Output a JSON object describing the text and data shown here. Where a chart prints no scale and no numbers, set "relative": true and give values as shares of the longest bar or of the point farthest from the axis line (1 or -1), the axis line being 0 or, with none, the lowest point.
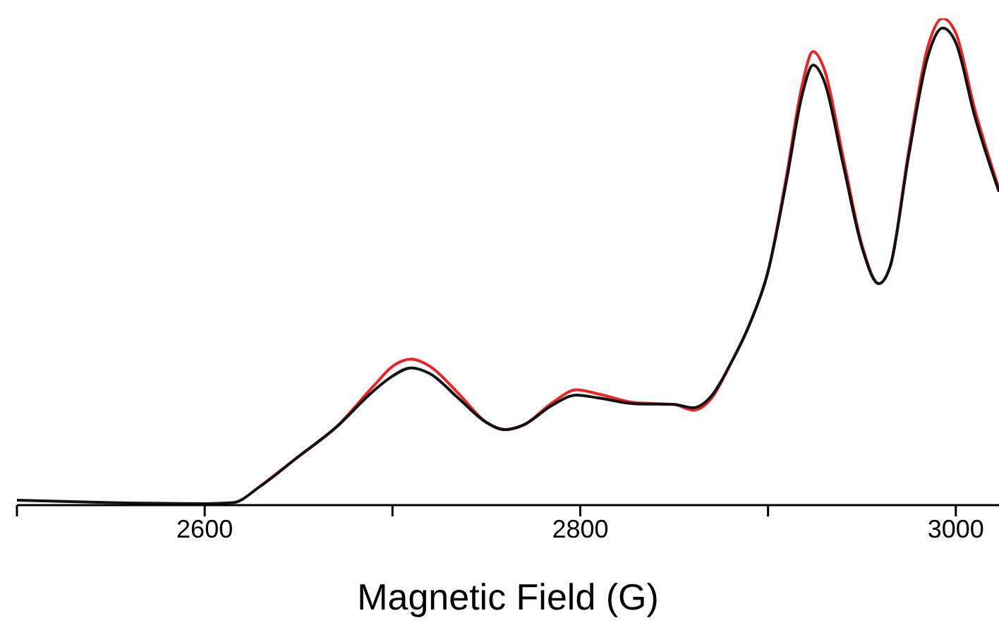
{
  "chart_data": {
    "type": "line",
    "xlabel": "Magnetic Field (G)",
    "relative": true,
    "x": [
      2500,
      2550,
      2600,
      2615,
      2630,
      2650,
      2670,
      2690,
      2700,
      2710,
      2720,
      2735,
      2750,
      2760,
      2770,
      2785,
      2798,
      2810,
      2830,
      2850,
      2860,
      2870,
      2880,
      2890,
      2900,
      2910,
      2918,
      2924,
      2930,
      2940,
      2950,
      2959,
      2965,
      2975,
      2985,
      2993,
      3000,
      3010,
      3023
    ],
    "series": [
      {
        "color": "#ee2222",
        "values": [
          null,
          null,
          null,
          null,
          0.04,
          0.1,
          0.16,
          0.245,
          0.285,
          0.3,
          0.285,
          0.23,
          0.17,
          0.155,
          0.165,
          0.21,
          0.237,
          0.228,
          0.21,
          0.207,
          0.195,
          0.22,
          0.29,
          0.37,
          0.48,
          0.68,
          0.86,
          0.932,
          0.895,
          0.715,
          0.535,
          0.455,
          0.49,
          0.73,
          0.94,
          1,
          0.97,
          0.815,
          0.65
        ]
      },
      {
        "color": "#111111",
        "values": [
          0.01,
          0.005,
          0.003,
          0.005,
          0.04,
          0.1,
          0.16,
          0.235,
          0.265,
          0.282,
          0.27,
          0.22,
          0.17,
          0.155,
          0.165,
          0.205,
          0.226,
          0.22,
          0.208,
          0.207,
          0.2,
          0.225,
          0.29,
          0.37,
          0.48,
          0.67,
          0.84,
          0.904,
          0.87,
          0.7,
          0.53,
          0.455,
          0.49,
          0.72,
          0.92,
          0.98,
          0.95,
          0.8,
          0.644
        ]
      }
    ],
    "xlim": [
      2500,
      3023
    ],
    "xticks": [
      {
        "value": 2500,
        "label": null
      },
      2600,
      {
        "value": 2700,
        "label": null
      },
      2800,
      {
        "value": 2900,
        "label": null
      },
      3000
    ],
    "line_style": "solid",
    "marker": "none",
    "legend": false,
    "grid": false
  }
}
